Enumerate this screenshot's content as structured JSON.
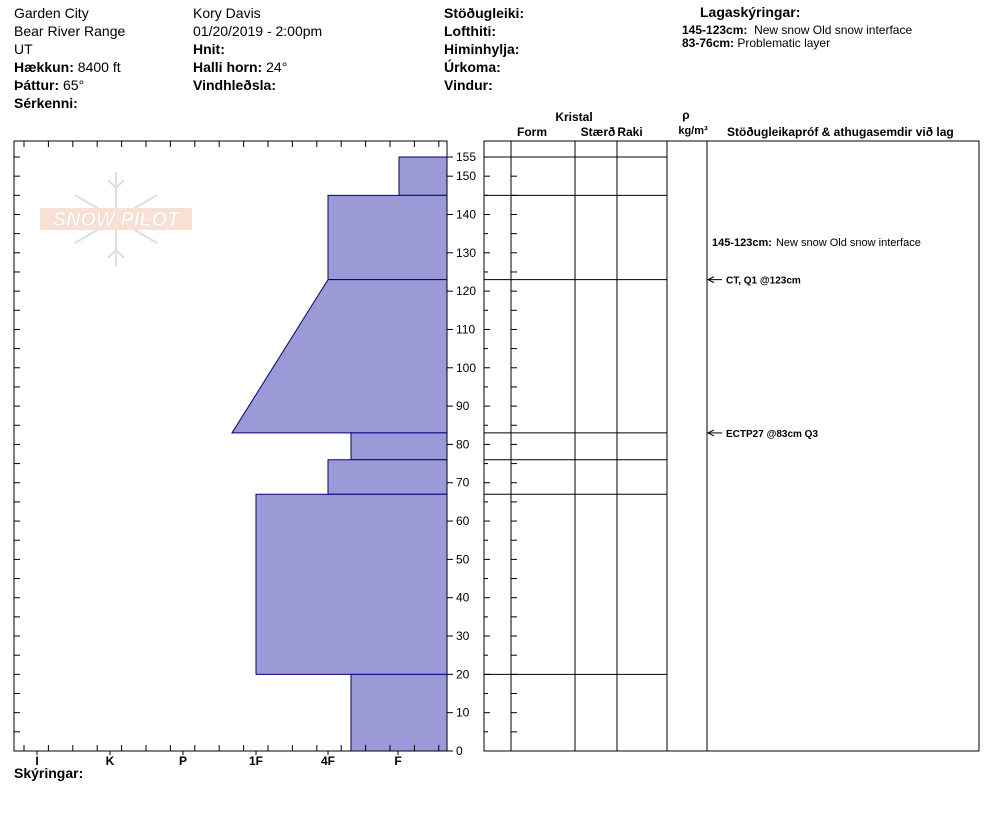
{
  "header": {
    "location": "Garden City",
    "range": "Bear River Range",
    "state": "UT",
    "elevation_label": "Hækkun:",
    "elevation_value": "8400 ft",
    "aspect_label": "Þáttur:",
    "aspect_value": "65°",
    "features_label": "Sérkenni:",
    "observer": "Kory Davis",
    "datetime": "01/20/2019 - 2:00pm",
    "coords_label": "Hnit:",
    "slope_label": "Halli horn:",
    "slope_value": "24°",
    "wind_loading_label": "Vindhleðsla:",
    "stability_label": "Stöðugleiki:",
    "air_temp_label": "Lofthiti:",
    "sky_label": "Himinhylja:",
    "precip_label": "Úrkoma:",
    "wind_label": "Vindur:"
  },
  "legend": {
    "title": "Lagaskýringar:",
    "items": [
      {
        "range": "145-123cm:",
        "text": "New snow Old snow interface"
      },
      {
        "range": "83-76cm:",
        "text": "Problematic layer"
      }
    ]
  },
  "columns": {
    "crystal": "Kristal",
    "form": "Form",
    "size": "Stærð",
    "moisture": "Raki",
    "rho": "ρ",
    "density_unit": "kg/m³",
    "tests": "Stöðugleikapróf & athugasemdir við lag"
  },
  "comment": {
    "range": "145-123cm:",
    "text": "New snow Old snow interface"
  },
  "tests": [
    {
      "label": "CT, Q1 @123cm",
      "depth": 123
    },
    {
      "label": "ECTP27 @83cm  Q3",
      "depth": 83
    }
  ],
  "watermark": "SNOW PILOT",
  "footer_label": "Skýringar:",
  "colors": {
    "hardness_fill": "#9b99d6",
    "hardness_stroke": "#000080"
  },
  "chart_data": {
    "type": "bar",
    "orientation": "horizontal",
    "x_tick_labels": [
      "I",
      "K",
      "P",
      "1F",
      "4F",
      "F"
    ],
    "y_ticks": [
      0,
      10,
      20,
      30,
      40,
      50,
      60,
      70,
      80,
      90,
      100,
      110,
      120,
      130,
      140,
      150,
      155
    ],
    "ylim": [
      0,
      156
    ],
    "layers": [
      {
        "top": 155,
        "bottom": 145,
        "hardness_top": "F+",
        "hardness_bottom": "F+"
      },
      {
        "top": 145,
        "bottom": 123,
        "hardness_top": "4F",
        "hardness_bottom": "4F"
      },
      {
        "top": 123,
        "bottom": 83,
        "hardness_top": "4F",
        "hardness_bottom": "P-"
      },
      {
        "top": 83,
        "bottom": 76,
        "hardness_top": "4F-",
        "hardness_bottom": "4F-"
      },
      {
        "top": 76,
        "bottom": 67,
        "hardness_top": "4F",
        "hardness_bottom": "4F"
      },
      {
        "top": 67,
        "bottom": 20,
        "hardness_top": "1F",
        "hardness_bottom": "1F"
      },
      {
        "top": 20,
        "bottom": 0,
        "hardness_top": "4F-",
        "hardness_bottom": "4F-"
      }
    ],
    "layer_boundaries": [
      155,
      145,
      123,
      83,
      76,
      67,
      20
    ]
  }
}
